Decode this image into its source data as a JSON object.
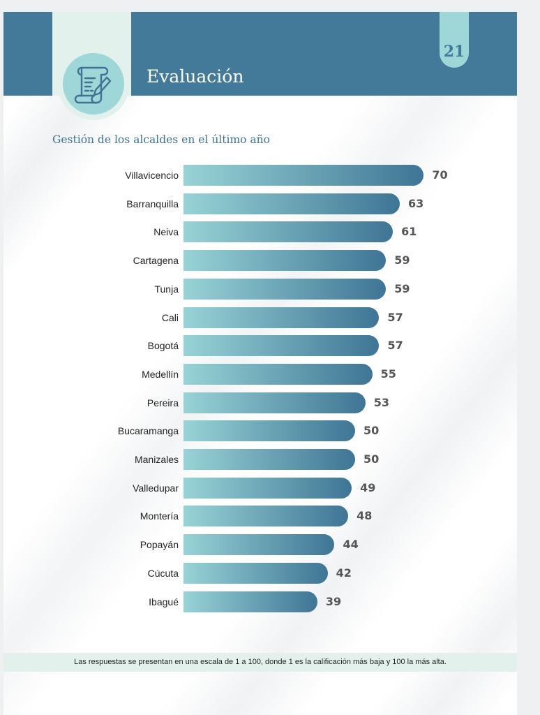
{
  "header": {
    "title": "Evaluación",
    "page_number": "21",
    "icon": "document-pen-icon"
  },
  "colors": {
    "banner": "#437a9a",
    "accent": "#9fd6d8",
    "mint": "#e3f1ec",
    "bar_start": "#98d3d6",
    "bar_end": "#3f7595"
  },
  "chart_data": {
    "type": "bar",
    "orientation": "horizontal",
    "title": "Gestión de los alcaldes en el último año",
    "categories": [
      "Villavicencio",
      "Barranquilla",
      "Neiva",
      "Cartagena",
      "Tunja",
      "Cali",
      "Bogotá",
      "Medellín",
      "Pereira",
      "Bucaramanga",
      "Manizales",
      "Valledupar",
      "Montería",
      "Popayán",
      "Cúcuta",
      "Ibagué"
    ],
    "values": [
      70,
      63,
      61,
      59,
      59,
      57,
      57,
      55,
      53,
      50,
      50,
      49,
      48,
      44,
      42,
      39
    ],
    "xlim": [
      0,
      100
    ],
    "grid": false
  },
  "footnote": "Las respuestas se presentan en una escala de 1 a 100, donde 1 es la calificación más baja y 100 la más alta."
}
